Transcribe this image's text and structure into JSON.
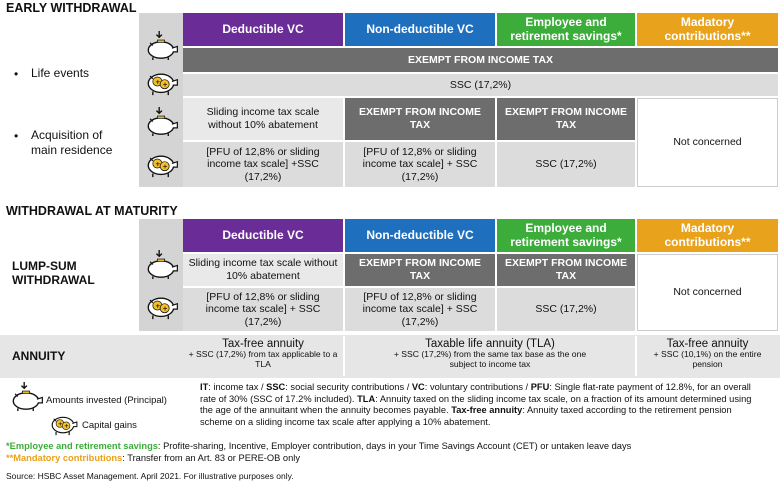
{
  "early": {
    "title": "EARLY WITHDRAWAL",
    "life_events": "Life events",
    "acq_line1": "Acquisition of",
    "acq_line2": "main residence",
    "exempt_all": "EXEMPT FROM INCOME TAX",
    "ssc_all": "SSC (17,2%)",
    "deductible_top": "Sliding income tax scale without 10% abatement",
    "nondeductible_top": "EXEMPT FROM INCOME TAX",
    "employee_top": "EXEMPT FROM INCOME TAX",
    "deductible_bottom": "[PFU of 12,8% or sliding income tax scale] +SSC (17,2%)",
    "nondeductible_bottom": "[PFU of 12,8% or sliding income tax scale] + SSC (17,2%)",
    "employee_bottom": "SSC (17,2%)",
    "mandatory": "Not concerned"
  },
  "headers": {
    "deductible": "Deductible VC",
    "nondeductible": "Non-deductible VC",
    "employee": "Employee and retirement savings*",
    "mandatory": "Madatory contributions**"
  },
  "maturity": {
    "title": "WITHDRAWAL AT MATURITY",
    "lump_label": "LUMP-SUM WITHDRAWAL",
    "deductible_top": "Sliding income tax scale without 10% abatement",
    "nondeductible_top": "EXEMPT FROM INCOME TAX",
    "employee_top": "EXEMPT FROM INCOME TAX",
    "deductible_bottom": "[PFU of 12,8% or sliding income tax scale] + SSC (17,2%)",
    "nondeductible_bottom": "[PFU of 12,8% or sliding income tax scale] + SSC (17,2%)",
    "employee_bottom": "SSC (17,2%)",
    "mandatory": "Not concerned"
  },
  "annuity": {
    "label": "ANNUITY",
    "c1_title": "Tax-free annuity",
    "c1_sub": "+ SSC (17,2%) from tax applicable to a TLA",
    "c2_title": "Taxable life annuity (TLA)",
    "c2_sub": "+ SSC (17,2%) from the same tax base as the one subject to income tax",
    "c3_title": "Tax-free annuity",
    "c3_sub": "+ SSC (10,1%) on the entire pension"
  },
  "legend": {
    "principal": "Amounts invested (Principal)",
    "gains": "Capital gains"
  },
  "definitions": {
    "it_k": "IT",
    "it_v": ": income tax / ",
    "ssc_k": "SSC",
    "ssc_v": ": social security contributions / ",
    "vc_k": "VC",
    "vc_v": ": voluntary contributions / ",
    "pfu_k": "PFU",
    "pfu_v": ": Single flat-rate payment of 12.8%, for an overall rate of 30% (SSC of 17.2% included). ",
    "tla_k": "TLA",
    "tla_v": ": Annuity taxed on the sliding income tax scale, on a fraction of its amount determined using the age of the annuitant when the annuity becomes payable. ",
    "tfa_k": "Tax-free annuity",
    "tfa_v": ": Annuity taxed according to the retirement pension scheme on a sliding income tax scale after applying a 10% abatement."
  },
  "notes": {
    "n1_star": "*",
    "n1_k": "Employee and retirement savings",
    "n1_v": ": Profite-sharing, Incentive, Employer contribution, days in your Time Savings Account (CET) or untaken leave days",
    "n2_star": "**",
    "n2_k": "Mandatory contributions",
    "n2_v": ": Transfer from an Art. 83 or PERE-OB only",
    "source": "Source: HSBC Asset Management. April 2021. For illustrative purposes only."
  },
  "colors": {
    "purple": "#6a2c96",
    "blue": "#1f6fbf",
    "green": "#3cad3a",
    "orange": "#e9a21b",
    "dark_grey": "#6d6d6d"
  },
  "icons": [
    "piggy-bank-principal-icon",
    "piggy-bank-gains-icon"
  ]
}
